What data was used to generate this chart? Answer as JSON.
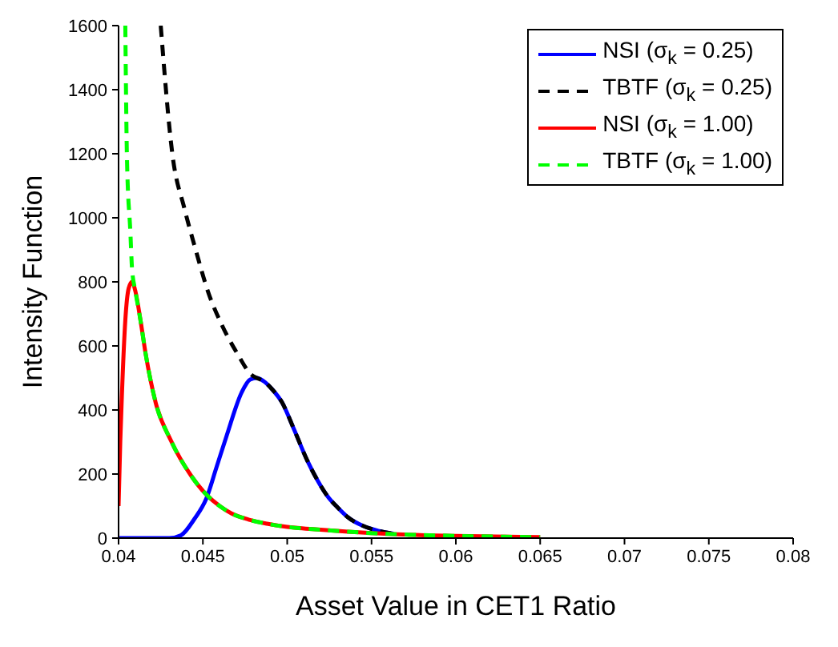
{
  "chart_data": {
    "type": "line",
    "xlabel": "Asset Value in CET1 Ratio",
    "ylabel": "Intensity Function",
    "xlim": [
      0.04,
      0.08
    ],
    "ylim": [
      0,
      1600
    ],
    "xticks": [
      0.04,
      0.045,
      0.05,
      0.055,
      0.06,
      0.065,
      0.07,
      0.075,
      0.08
    ],
    "yticks": [
      0,
      200,
      400,
      600,
      800,
      1000,
      1200,
      1400,
      1600
    ],
    "grid": false,
    "legend": "top right",
    "marker": "none",
    "series": [
      {
        "name": "NSI (σ$_{k}$ = 0.25)",
        "color": "#0000ff",
        "line_style": "solid",
        "x": [
          0.04,
          0.043,
          0.0437,
          0.0445,
          0.0452,
          0.0458,
          0.0464,
          0.0473,
          0.0478,
          0.0482,
          0.0486,
          0.0491,
          0.0497,
          0.0504,
          0.0512,
          0.0518,
          0.0524,
          0.053,
          0.0536,
          0.0545,
          0.0554,
          0.0563
        ],
        "values": [
          0,
          0,
          9,
          60,
          123,
          220,
          318,
          455,
          495,
          500,
          490,
          465,
          423,
          340,
          241,
          180,
          130,
          95,
          65,
          38,
          23,
          14
        ]
      },
      {
        "name": "TBTF (σ$_{k}$ = 0.25)",
        "color": "#000000",
        "line_style": "dashed",
        "x": [
          0.0425,
          0.0432,
          0.0439,
          0.0446,
          0.0453,
          0.0461,
          0.047,
          0.0479,
          0.0482,
          0.0486,
          0.0491,
          0.0497,
          0.0504,
          0.0512,
          0.0518,
          0.0524,
          0.053,
          0.0536,
          0.0545,
          0.0554,
          0.0563
        ],
        "values": [
          1600,
          1195,
          1030,
          895,
          770,
          668,
          580,
          509,
          500,
          490,
          465,
          423,
          340,
          241,
          180,
          130,
          95,
          65,
          38,
          23,
          14
        ]
      },
      {
        "name": "NSI (σ$_{k}$ = 1.00)",
        "color": "#ff0000",
        "line_style": "solid",
        "x": [
          0.04,
          0.0401,
          0.0402,
          0.0404,
          0.0406,
          0.0408,
          0.041,
          0.0413,
          0.0416,
          0.0422,
          0.0431,
          0.0443,
          0.0452,
          0.046,
          0.0467,
          0.0477,
          0.0488,
          0.05,
          0.0515,
          0.0536,
          0.056,
          0.06,
          0.065
        ],
        "values": [
          100,
          300,
          450,
          680,
          780,
          800,
          770,
          680,
          577,
          423,
          305,
          195,
          136,
          100,
          77,
          58,
          45,
          35,
          28,
          20,
          13,
          7,
          3
        ]
      },
      {
        "name": "TBTF (σ$_{k}$ = 1.00)",
        "color": "#00ff00",
        "line_style": "dashed",
        "x": [
          0.0404,
          0.0405,
          0.0407,
          0.0408,
          0.041,
          0.0413,
          0.0416,
          0.0422,
          0.0431,
          0.0443,
          0.0452,
          0.046,
          0.0467,
          0.0477,
          0.0488,
          0.05,
          0.0515,
          0.0536,
          0.056,
          0.06,
          0.065
        ],
        "values": [
          1600,
          1180,
          955,
          840,
          770,
          680,
          577,
          423,
          305,
          195,
          136,
          100,
          77,
          58,
          45,
          35,
          28,
          20,
          13,
          7,
          3
        ]
      }
    ]
  }
}
